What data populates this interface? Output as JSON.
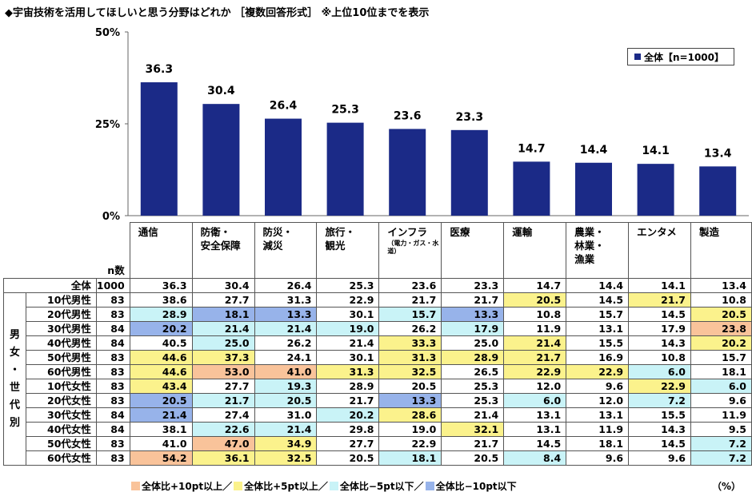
{
  "title": "◆宇宙技術を活用してほしいと思う分野はどれか ［複数回答形式］ ※上位10位までを表示",
  "chart_data": {
    "type": "bar",
    "categories": [
      "通信",
      "防衛・安全保障",
      "防災・減災",
      "旅行・観光",
      "インフラ",
      "医療",
      "運輸",
      "農業・林業・漁業",
      "エンタメ",
      "製造"
    ],
    "series": [
      {
        "name": "全体【n=1000】",
        "values": [
          36.3,
          30.4,
          26.4,
          25.3,
          23.6,
          23.3,
          14.7,
          14.4,
          14.1,
          13.4
        ]
      }
    ],
    "ylim": [
      0,
      50
    ],
    "yticks": [
      "0%",
      "25%",
      "50%"
    ],
    "ytick_values": [
      0,
      25,
      50
    ],
    "bar_color": "#1b2a87",
    "grid": false,
    "legend_position": "top-right"
  },
  "table": {
    "n_header": "n数",
    "col_headers": [
      {
        "lines": [
          "通信"
        ]
      },
      {
        "lines": [
          "防衛・",
          "安全保障"
        ]
      },
      {
        "lines": [
          "防災・",
          "減災"
        ]
      },
      {
        "lines": [
          "旅行・",
          "観光"
        ]
      },
      {
        "lines": [
          "インフラ"
        ],
        "sub": "（電力・ガス・水道）"
      },
      {
        "lines": [
          "医療"
        ]
      },
      {
        "lines": [
          "運輸"
        ]
      },
      {
        "lines": [
          "農業・",
          "林業・",
          "漁業"
        ]
      },
      {
        "lines": [
          "エンタメ"
        ]
      },
      {
        "lines": [
          "製造"
        ]
      }
    ],
    "group_label": "男女・世代別",
    "total": {
      "label": "全体",
      "n": "1000",
      "values": [
        "36.3",
        "30.4",
        "26.4",
        "25.3",
        "23.6",
        "23.3",
        "14.7",
        "14.4",
        "14.1",
        "13.4"
      ]
    },
    "rows": [
      {
        "label": "10代男性",
        "n": "83",
        "values": [
          "38.6",
          "27.7",
          "31.3",
          "22.9",
          "21.7",
          "21.7",
          "20.5",
          "14.5",
          "21.7",
          "10.8"
        ],
        "shade": [
          "",
          "",
          "",
          "",
          "",
          "",
          "p5",
          "",
          "p5",
          ""
        ]
      },
      {
        "label": "20代男性",
        "n": "83",
        "values": [
          "28.9",
          "18.1",
          "13.3",
          "30.1",
          "15.7",
          "13.3",
          "10.8",
          "15.7",
          "14.5",
          "20.5"
        ],
        "shade": [
          "m5",
          "m10",
          "m10",
          "",
          "m5",
          "m10",
          "",
          "",
          "",
          "p5"
        ]
      },
      {
        "label": "30代男性",
        "n": "84",
        "values": [
          "20.2",
          "21.4",
          "21.4",
          "19.0",
          "26.2",
          "17.9",
          "11.9",
          "13.1",
          "17.9",
          "23.8"
        ],
        "shade": [
          "m10",
          "m5",
          "m5",
          "m5",
          "",
          "m5",
          "",
          "",
          "",
          "p10"
        ]
      },
      {
        "label": "40代男性",
        "n": "84",
        "values": [
          "40.5",
          "25.0",
          "26.2",
          "21.4",
          "33.3",
          "25.0",
          "21.4",
          "15.5",
          "14.3",
          "20.2"
        ],
        "shade": [
          "",
          "m5",
          "",
          "",
          "p5",
          "",
          "p5",
          "",
          "",
          "p5"
        ]
      },
      {
        "label": "50代男性",
        "n": "83",
        "values": [
          "44.6",
          "37.3",
          "24.1",
          "30.1",
          "31.3",
          "28.9",
          "21.7",
          "16.9",
          "10.8",
          "15.7"
        ],
        "shade": [
          "p5",
          "p5",
          "",
          "",
          "p5",
          "p5",
          "p5",
          "",
          "",
          ""
        ]
      },
      {
        "label": "60代男性",
        "n": "83",
        "values": [
          "44.6",
          "53.0",
          "41.0",
          "31.3",
          "32.5",
          "26.5",
          "22.9",
          "22.9",
          "6.0",
          "18.1"
        ],
        "shade": [
          "p5",
          "p10",
          "p10",
          "p5",
          "p5",
          "",
          "p5",
          "p5",
          "m5",
          ""
        ]
      },
      {
        "label": "10代女性",
        "n": "83",
        "values": [
          "43.4",
          "27.7",
          "19.3",
          "28.9",
          "20.5",
          "25.3",
          "12.0",
          "9.6",
          "22.9",
          "6.0"
        ],
        "shade": [
          "p5",
          "",
          "m5",
          "",
          "",
          "",
          "",
          "",
          "p5",
          "m5"
        ]
      },
      {
        "label": "20代女性",
        "n": "83",
        "values": [
          "20.5",
          "21.7",
          "20.5",
          "21.7",
          "13.3",
          "25.3",
          "6.0",
          "12.0",
          "7.2",
          "9.6"
        ],
        "shade": [
          "m10",
          "m5",
          "m5",
          "",
          "m10",
          "",
          "m5",
          "",
          "m5",
          ""
        ]
      },
      {
        "label": "30代女性",
        "n": "84",
        "values": [
          "21.4",
          "27.4",
          "31.0",
          "20.2",
          "28.6",
          "21.4",
          "13.1",
          "13.1",
          "15.5",
          "11.9"
        ],
        "shade": [
          "m10",
          "",
          "",
          "m5",
          "p5",
          "",
          "",
          "",
          "",
          ""
        ]
      },
      {
        "label": "40代女性",
        "n": "84",
        "values": [
          "38.1",
          "22.6",
          "21.4",
          "29.8",
          "19.0",
          "32.1",
          "13.1",
          "11.9",
          "14.3",
          "9.5"
        ],
        "shade": [
          "",
          "m5",
          "m5",
          "",
          "",
          "p5",
          "",
          "",
          "",
          ""
        ]
      },
      {
        "label": "50代女性",
        "n": "83",
        "values": [
          "41.0",
          "47.0",
          "34.9",
          "27.7",
          "22.9",
          "21.7",
          "14.5",
          "18.1",
          "14.5",
          "7.2"
        ],
        "shade": [
          "",
          "p10",
          "p5",
          "",
          "",
          "",
          "",
          "",
          "",
          "m5"
        ]
      },
      {
        "label": "60代女性",
        "n": "83",
        "values": [
          "54.2",
          "36.1",
          "32.5",
          "20.5",
          "18.1",
          "20.5",
          "8.4",
          "9.6",
          "9.6",
          "7.2"
        ],
        "shade": [
          "p10",
          "p5",
          "p5",
          "",
          "m5",
          "",
          "m5",
          "",
          "",
          "m5"
        ]
      }
    ]
  },
  "shading_legend": [
    {
      "key": "p10",
      "label": "全体比+10pt以上／",
      "color": "#f9c39a"
    },
    {
      "key": "p5",
      "label": "全体比+5pt以上／",
      "color": "#fbf28c"
    },
    {
      "key": "m5",
      "label": "全体比−5pt以下／",
      "color": "#c9f3f7"
    },
    {
      "key": "m10",
      "label": "全体比−10pt以下",
      "color": "#97b3ea"
    }
  ],
  "unit_label": "（%）"
}
